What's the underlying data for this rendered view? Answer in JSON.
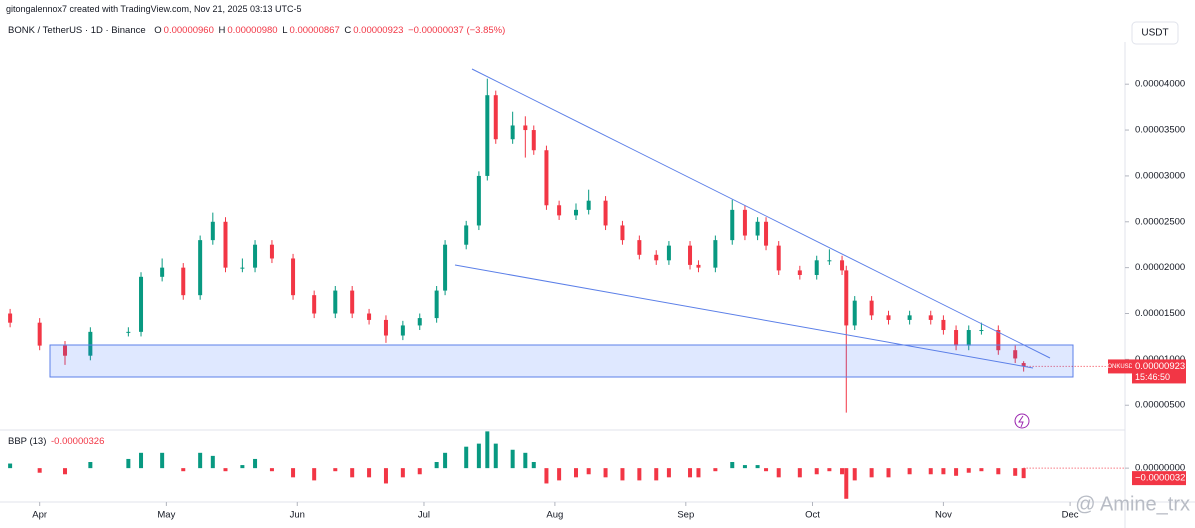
{
  "credit": "gitongalennox7 created with TradingView.com, Nov 21, 2025 03:13 UTC-5",
  "symbol": "BONK / TetherUS · 1D · Binance",
  "ohlc": [
    {
      "label": "O",
      "value": "0.00000960"
    },
    {
      "label": "H",
      "value": "0.00000980"
    },
    {
      "label": "L",
      "value": "0.00000867"
    },
    {
      "label": "C",
      "value": "0.00000923"
    }
  ],
  "change": "−0.00000037 (−3.85%)",
  "currency_button": "USDT",
  "watermark": "@ Amine_trx",
  "chart_data": [
    {
      "type": "candlestick",
      "up_color": "#089981",
      "down_color": "#f23645",
      "x": [
        -7,
        0,
        6,
        12,
        21,
        24,
        29,
        34,
        38,
        41,
        44,
        48,
        51,
        55,
        60,
        65,
        70,
        74,
        78,
        82,
        86,
        90,
        94,
        96,
        101,
        104,
        106,
        108,
        112,
        115,
        117,
        120,
        123,
        127,
        130,
        134,
        138,
        142,
        146,
        149,
        154,
        156,
        160,
        164,
        167,
        170,
        172,
        175,
        180,
        184,
        187,
        190,
        191,
        193,
        197,
        201,
        206,
        211,
        214,
        217,
        220,
        223,
        227,
        231,
        233
      ],
      "open": [
        1.5e-05,
        1.4e-05,
        1.15e-05,
        1.04e-05,
        1.3e-05,
        1.3e-05,
        1.9e-05,
        2e-05,
        1.7e-05,
        2.3e-05,
        2.5e-05,
        2e-05,
        2e-05,
        2.25e-05,
        2.1e-05,
        1.7e-05,
        1.5e-05,
        1.75e-05,
        1.5e-05,
        1.43e-05,
        1.26e-05,
        1.37e-05,
        1.45e-05,
        1.75e-05,
        2.25e-05,
        2.46e-05,
        3e-05,
        3.88e-05,
        3.4e-05,
        3.55e-05,
        3.5e-05,
        3.28e-05,
        2.68e-05,
        2.57e-05,
        2.63e-05,
        2.73e-05,
        2.46e-05,
        2.3e-05,
        2.14e-05,
        2.08e-05,
        2.24e-05,
        2.03e-05,
        2e-05,
        2.3e-05,
        2.63e-05,
        2.35e-05,
        2.5e-05,
        2.24e-05,
        1.97e-05,
        1.92e-05,
        2.08e-05,
        2.08e-05,
        1.97e-05,
        1.37e-05,
        1.64e-05,
        1.48e-05,
        1.43e-05,
        1.48e-05,
        1.43e-05,
        1.32e-05,
        1.15e-05,
        1.32e-05,
        1.32e-05,
        1.1e-05,
        9.6e-06
      ],
      "high": [
        1.55e-05,
        1.45e-05,
        1.2e-05,
        1.35e-05,
        1.35e-05,
        1.95e-05,
        2.1e-05,
        2.05e-05,
        2.35e-05,
        2.6e-05,
        2.55e-05,
        2.1e-05,
        2.3e-05,
        2.3e-05,
        2.15e-05,
        1.75e-05,
        1.8e-05,
        1.8e-05,
        1.55e-05,
        1.48e-05,
        1.42e-05,
        1.5e-05,
        1.8e-05,
        2.3e-05,
        2.51e-05,
        3.05e-05,
        4.06e-05,
        3.93e-05,
        3.7e-05,
        3.65e-05,
        3.55e-05,
        3.33e-05,
        2.73e-05,
        2.7e-05,
        2.85e-05,
        2.78e-05,
        2.51e-05,
        2.35e-05,
        2.19e-05,
        2.29e-05,
        2.29e-05,
        2.08e-05,
        2.35e-05,
        2.74e-05,
        2.68e-05,
        2.55e-05,
        2.55e-05,
        2.29e-05,
        2.02e-05,
        2.13e-05,
        2.2e-05,
        2.13e-05,
        2.02e-05,
        1.69e-05,
        1.69e-05,
        1.53e-05,
        1.53e-05,
        1.53e-05,
        1.48e-05,
        1.37e-05,
        1.37e-05,
        1.4e-05,
        1.37e-05,
        1.15e-05,
        9.8e-06
      ],
      "low": [
        1.35e-05,
        1.1e-05,
        9.4e-06,
        9.9e-06,
        1.25e-05,
        1.25e-05,
        1.85e-05,
        1.65e-05,
        1.65e-05,
        2.25e-05,
        1.95e-05,
        1.95e-05,
        1.95e-05,
        2.05e-05,
        1.65e-05,
        1.45e-05,
        1.45e-05,
        1.45e-05,
        1.38e-05,
        1.18e-05,
        1.21e-05,
        1.32e-05,
        1.4e-05,
        1.7e-05,
        2.2e-05,
        2.41e-05,
        2.95e-05,
        3.35e-05,
        3.35e-05,
        3.2e-05,
        3.23e-05,
        2.63e-05,
        2.52e-05,
        2.52e-05,
        2.58e-05,
        2.41e-05,
        2.25e-05,
        2.09e-05,
        2.03e-05,
        2.03e-05,
        1.98e-05,
        1.95e-05,
        1.95e-05,
        2.25e-05,
        2.3e-05,
        2.3e-05,
        2.19e-05,
        1.92e-05,
        1.87e-05,
        1.87e-05,
        2.03e-05,
        1.92e-05,
        4.2e-06,
        1.32e-05,
        1.43e-05,
        1.38e-05,
        1.38e-05,
        1.38e-05,
        1.27e-05,
        1.1e-05,
        1.1e-05,
        1.27e-05,
        1.05e-05,
        9.6e-06,
        8.67e-06
      ],
      "close": [
        1.4e-05,
        1.15e-05,
        1.04e-05,
        1.3e-05,
        1.3e-05,
        1.9e-05,
        2e-05,
        1.7e-05,
        2.3e-05,
        2.5e-05,
        2e-05,
        2e-05,
        2.25e-05,
        2.1e-05,
        1.7e-05,
        1.5e-05,
        1.75e-05,
        1.5e-05,
        1.43e-05,
        1.26e-05,
        1.37e-05,
        1.45e-05,
        1.75e-05,
        2.25e-05,
        2.46e-05,
        3e-05,
        3.88e-05,
        3.4e-05,
        3.55e-05,
        3.5e-05,
        3.28e-05,
        2.68e-05,
        2.57e-05,
        2.63e-05,
        2.73e-05,
        2.46e-05,
        2.3e-05,
        2.14e-05,
        2.08e-05,
        2.24e-05,
        2.03e-05,
        2e-05,
        2.3e-05,
        2.63e-05,
        2.35e-05,
        2.5e-05,
        2.24e-05,
        1.97e-05,
        1.92e-05,
        2.08e-05,
        2.08e-05,
        1.97e-05,
        1.37e-05,
        1.64e-05,
        1.48e-05,
        1.43e-05,
        1.48e-05,
        1.43e-05,
        1.32e-05,
        1.15e-05,
        1.32e-05,
        1.32e-05,
        1.1e-05,
        1.01e-05,
        9.23e-06
      ],
      "xlim": [
        -7.5,
        257
      ],
      "xticks": [
        {
          "value": 0,
          "label": "Apr"
        },
        {
          "value": 30,
          "label": "May"
        },
        {
          "value": 61,
          "label": "Jun"
        },
        {
          "value": 91,
          "label": "Jul"
        },
        {
          "value": 122,
          "label": "Aug"
        },
        {
          "value": 153,
          "label": "Sep"
        },
        {
          "value": 183,
          "label": "Oct"
        },
        {
          "value": 214,
          "label": "Nov"
        },
        {
          "value": 244,
          "label": "Dec"
        }
      ],
      "ylim": [
        2.3e-06,
        4.46e-05
      ],
      "yticks": [
        {
          "value": 5e-06,
          "label": "0.00000500"
        },
        {
          "value": 1e-05,
          "label": "0.00001000"
        },
        {
          "value": 1.5e-05,
          "label": "0.00001500"
        },
        {
          "value": 2e-05,
          "label": "0.00002000"
        },
        {
          "value": 2.5e-05,
          "label": "0.00002500"
        },
        {
          "value": 3e-05,
          "label": "0.00003000"
        },
        {
          "value": 3.5e-05,
          "label": "0.00003500"
        },
        {
          "value": 4e-05,
          "label": "0.00004000"
        }
      ],
      "last_price": {
        "symbol": "BONKUSDT",
        "price": "0.00000923",
        "countdown": "15:46:50"
      }
    },
    {
      "type": "bar",
      "title": "BBP (13)",
      "title_value": "-0.00000326",
      "up_color": "#089981",
      "down_color": "#f23645",
      "x": [
        -7,
        0,
        6,
        12,
        21,
        24,
        29,
        34,
        38,
        41,
        44,
        48,
        51,
        55,
        60,
        65,
        70,
        74,
        78,
        82,
        86,
        90,
        94,
        96,
        101,
        104,
        106,
        108,
        112,
        115,
        117,
        120,
        123,
        127,
        130,
        134,
        138,
        142,
        146,
        149,
        154,
        156,
        160,
        164,
        167,
        170,
        172,
        175,
        180,
        184,
        187,
        190,
        191,
        193,
        197,
        201,
        206,
        211,
        214,
        217,
        220,
        223,
        227,
        231,
        233
      ],
      "values": [
        1.5e-06,
        -1.5e-06,
        -2e-06,
        2e-06,
        3e-06,
        5e-06,
        5e-06,
        -1e-06,
        5e-06,
        4e-06,
        -1e-06,
        1e-06,
        3e-06,
        -1e-06,
        -3e-06,
        -4e-06,
        -1e-06,
        -3e-06,
        -3e-06,
        -5e-06,
        -3e-06,
        -2e-06,
        2e-06,
        5e-06,
        7e-06,
        8e-06,
        1.2e-05,
        8e-06,
        6e-06,
        5e-06,
        2e-06,
        -5e-06,
        -4e-06,
        -3e-06,
        -2e-06,
        -3e-06,
        -4e-06,
        -4e-06,
        -4e-06,
        -3e-06,
        -3e-06,
        -3e-06,
        -1e-06,
        2e-06,
        1e-06,
        1e-06,
        -1e-06,
        -3e-06,
        -3e-06,
        -2e-06,
        -1e-06,
        -2e-06,
        -1e-05,
        -4e-06,
        -3e-06,
        -3e-06,
        -2e-06,
        -2e-06,
        -2e-06,
        -2.5e-06,
        -1.5e-06,
        -1e-06,
        -2e-06,
        -2.5e-06,
        -3.26e-06
      ],
      "xlim": [
        -7.5,
        257
      ],
      "ylim": [
        -1.04e-05,
        1.31e-05
      ],
      "yticks": [
        {
          "value": 0,
          "label": "0.00000000"
        }
      ],
      "last_label": "−0.00000326"
    }
  ]
}
